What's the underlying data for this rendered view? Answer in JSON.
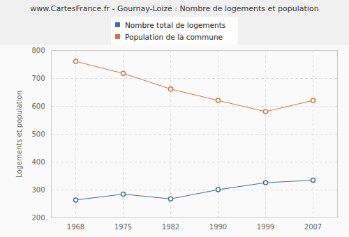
{
  "chart_data": {
    "type": "line",
    "title": "www.CartesFrance.fr - Gournay-Loizé : Nombre de logements et population",
    "y_label": "Logements et population",
    "categories": [
      "1968",
      "1975",
      "1982",
      "1990",
      "1999",
      "2007"
    ],
    "series": [
      {
        "name": "Nombre total de logements",
        "color": "#3d6fa3",
        "values": [
          264,
          285,
          268,
          301,
          326,
          335
        ]
      },
      {
        "name": "Population de la commune",
        "color": "#e0703c",
        "values": [
          761,
          718,
          662,
          621,
          581,
          621
        ]
      }
    ],
    "ylim": [
      200,
      800
    ],
    "yticks": [
      200,
      300,
      400,
      500,
      600,
      700,
      800
    ],
    "grid": true,
    "legend": "top",
    "marker": "circle"
  }
}
